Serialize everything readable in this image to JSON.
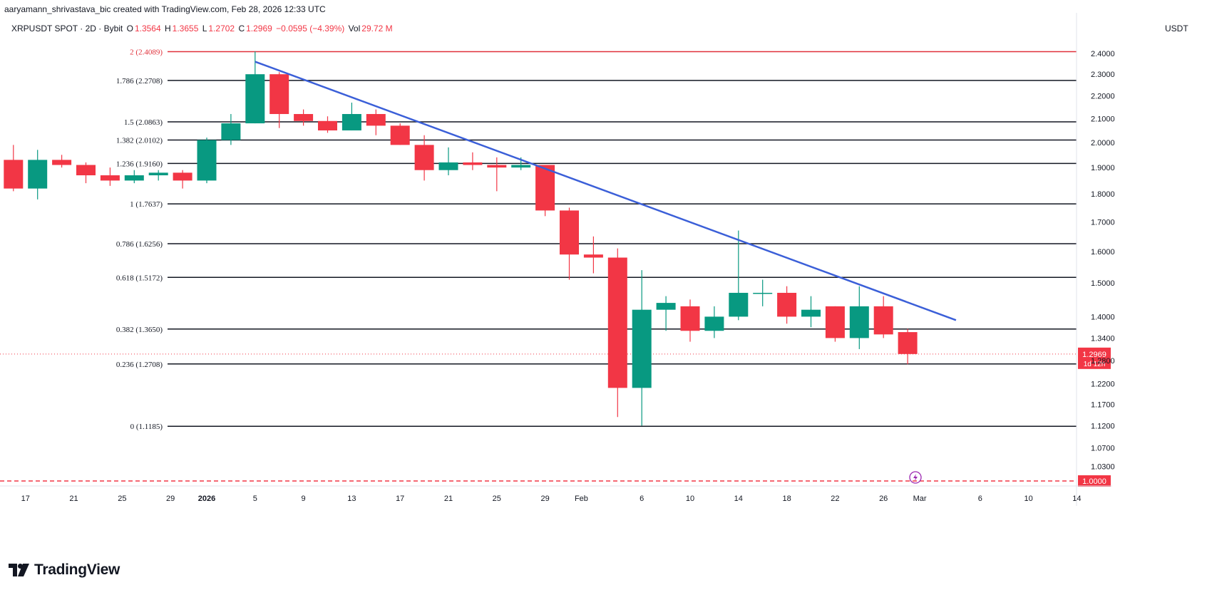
{
  "header": {
    "attribution": "aaryamann_shrivastava_bic created with TradingView.com, Feb 28, 2026 12:33 UTC"
  },
  "symbol_row": {
    "symbol": "XRPUSDT SPOT · 2D · Bybit",
    "o_label": "O",
    "o_value": "1.3564",
    "h_label": "H",
    "h_value": "1.3655",
    "l_label": "L",
    "l_value": "1.2702",
    "c_label": "C",
    "c_value": "1.2969",
    "change": "−0.0595 (−4.39%)",
    "vol_label": "Vol",
    "vol_value": "29.72 M"
  },
  "footer": {
    "logo_text": "TradingView"
  },
  "colors": {
    "up": "#089981",
    "down": "#f23645",
    "trendline": "#3b5fd8",
    "fib": "#131722",
    "top_fib": "#e0303a",
    "grid": "#f0f3fa"
  },
  "chart_data": {
    "type": "candlestick",
    "unit": "USDT",
    "timeframe": "2D",
    "ylim": [
      0.98,
      2.46
    ],
    "y_ticks": [
      "2.4000",
      "2.3000",
      "2.2000",
      "2.1000",
      "2.0000",
      "1.9000",
      "1.8000",
      "1.7000",
      "1.6000",
      "1.5000",
      "1.4000",
      "1.3400",
      "1.2800",
      "1.2200",
      "1.1700",
      "1.1200",
      "1.0700",
      "1.0300"
    ],
    "x_ticks": [
      {
        "label": "17",
        "day": -15
      },
      {
        "label": "21",
        "day": -11
      },
      {
        "label": "25",
        "day": -7
      },
      {
        "label": "29",
        "day": -3
      },
      {
        "label": "2026",
        "day": 0
      },
      {
        "label": "5",
        "day": 4
      },
      {
        "label": "9",
        "day": 8
      },
      {
        "label": "13",
        "day": 12
      },
      {
        "label": "17",
        "day": 16
      },
      {
        "label": "21",
        "day": 20
      },
      {
        "label": "25",
        "day": 24
      },
      {
        "label": "29",
        "day": 28
      },
      {
        "label": "Feb",
        "day": 31
      },
      {
        "label": "6",
        "day": 36
      },
      {
        "label": "10",
        "day": 40
      },
      {
        "label": "14",
        "day": 44
      },
      {
        "label": "18",
        "day": 48
      },
      {
        "label": "22",
        "day": 52
      },
      {
        "label": "26",
        "day": 56
      },
      {
        "label": "Mar",
        "day": 59
      },
      {
        "label": "6",
        "day": 64
      },
      {
        "label": "10",
        "day": 68
      },
      {
        "label": "14",
        "day": 72
      }
    ],
    "candles": [
      {
        "day": -16,
        "o": 1.93,
        "h": 1.99,
        "l": 1.81,
        "c": 1.82
      },
      {
        "day": -14,
        "o": 1.82,
        "h": 1.97,
        "l": 1.78,
        "c": 1.93
      },
      {
        "day": -12,
        "o": 1.93,
        "h": 1.95,
        "l": 1.9,
        "c": 1.91
      },
      {
        "day": -10,
        "o": 1.91,
        "h": 1.92,
        "l": 1.84,
        "c": 1.87
      },
      {
        "day": -8,
        "o": 1.87,
        "h": 1.9,
        "l": 1.83,
        "c": 1.85
      },
      {
        "day": -6,
        "o": 1.85,
        "h": 1.89,
        "l": 1.84,
        "c": 1.87
      },
      {
        "day": -4,
        "o": 1.87,
        "h": 1.89,
        "l": 1.85,
        "c": 1.88
      },
      {
        "day": -2,
        "o": 1.88,
        "h": 1.89,
        "l": 1.82,
        "c": 1.85
      },
      {
        "day": 0,
        "o": 1.85,
        "h": 2.02,
        "l": 1.84,
        "c": 2.01
      },
      {
        "day": 2,
        "o": 2.01,
        "h": 2.12,
        "l": 1.99,
        "c": 2.08
      },
      {
        "day": 4,
        "o": 2.08,
        "h": 2.41,
        "l": 2.08,
        "c": 2.3
      },
      {
        "day": 6,
        "o": 2.3,
        "h": 2.31,
        "l": 2.06,
        "c": 2.12
      },
      {
        "day": 8,
        "o": 2.12,
        "h": 2.14,
        "l": 2.07,
        "c": 2.09
      },
      {
        "day": 10,
        "o": 2.09,
        "h": 2.11,
        "l": 2.04,
        "c": 2.05
      },
      {
        "day": 12,
        "o": 2.05,
        "h": 2.17,
        "l": 2.05,
        "c": 2.12
      },
      {
        "day": 14,
        "o": 2.12,
        "h": 2.14,
        "l": 2.03,
        "c": 2.07
      },
      {
        "day": 16,
        "o": 2.07,
        "h": 2.08,
        "l": 1.99,
        "c": 1.99
      },
      {
        "day": 18,
        "o": 1.99,
        "h": 2.03,
        "l": 1.85,
        "c": 1.89
      },
      {
        "day": 20,
        "o": 1.89,
        "h": 1.98,
        "l": 1.87,
        "c": 1.92
      },
      {
        "day": 22,
        "o": 1.92,
        "h": 1.96,
        "l": 1.89,
        "c": 1.91
      },
      {
        "day": 24,
        "o": 1.91,
        "h": 1.94,
        "l": 1.81,
        "c": 1.9
      },
      {
        "day": 26,
        "o": 1.9,
        "h": 1.94,
        "l": 1.89,
        "c": 1.91
      },
      {
        "day": 28,
        "o": 1.91,
        "h": 1.91,
        "l": 1.72,
        "c": 1.74
      },
      {
        "day": 30,
        "o": 1.74,
        "h": 1.75,
        "l": 1.51,
        "c": 1.59
      },
      {
        "day": 32,
        "o": 1.59,
        "h": 1.65,
        "l": 1.53,
        "c": 1.58
      },
      {
        "day": 34,
        "o": 1.58,
        "h": 1.61,
        "l": 1.14,
        "c": 1.21
      },
      {
        "day": 36,
        "o": 1.21,
        "h": 1.54,
        "l": 1.12,
        "c": 1.42
      },
      {
        "day": 38,
        "o": 1.42,
        "h": 1.46,
        "l": 1.36,
        "c": 1.44
      },
      {
        "day": 40,
        "o": 1.43,
        "h": 1.45,
        "l": 1.33,
        "c": 1.36
      },
      {
        "day": 42,
        "o": 1.36,
        "h": 1.43,
        "l": 1.34,
        "c": 1.4
      },
      {
        "day": 44,
        "o": 1.4,
        "h": 1.67,
        "l": 1.39,
        "c": 1.47
      },
      {
        "day": 46,
        "o": 1.47,
        "h": 1.51,
        "l": 1.43,
        "c": 1.47
      },
      {
        "day": 48,
        "o": 1.47,
        "h": 1.49,
        "l": 1.38,
        "c": 1.4
      },
      {
        "day": 50,
        "o": 1.4,
        "h": 1.46,
        "l": 1.37,
        "c": 1.42
      },
      {
        "day": 52,
        "o": 1.43,
        "h": 1.43,
        "l": 1.33,
        "c": 1.34
      },
      {
        "day": 54,
        "o": 1.34,
        "h": 1.49,
        "l": 1.31,
        "c": 1.43
      },
      {
        "day": 56,
        "o": 1.43,
        "h": 1.46,
        "l": 1.34,
        "c": 1.35
      },
      {
        "day": 58,
        "o": 1.3564,
        "h": 1.3655,
        "l": 1.2702,
        "c": 1.2969
      }
    ],
    "fib_levels": [
      {
        "label": "2 (2.4089)",
        "value": 2.4089
      },
      {
        "label": "1.786 (2.2708)",
        "value": 2.2708
      },
      {
        "label": "1.5 (2.0863)",
        "value": 2.0863
      },
      {
        "label": "1.382 (2.0102)",
        "value": 2.0102
      },
      {
        "label": "1.236 (1.9160)",
        "value": 1.916
      },
      {
        "label": "1 (1.7637)",
        "value": 1.7637
      },
      {
        "label": "0.786 (1.6256)",
        "value": 1.6256
      },
      {
        "label": "0.618 (1.5172)",
        "value": 1.5172
      },
      {
        "label": "0.382 (1.3650)",
        "value": 1.365
      },
      {
        "label": "0.236 (1.2708)",
        "value": 1.2708
      },
      {
        "label": "0 (1.1185)",
        "value": 1.1185
      }
    ],
    "trendline": {
      "start": {
        "day": 4,
        "value": 2.36
      },
      "end": {
        "day": 62,
        "value": 1.39
      }
    },
    "support_level": {
      "value": 1.0,
      "label": "1.0000"
    },
    "last_price": {
      "value": 1.2969,
      "label": "1.2969",
      "countdown": "1d 12h"
    }
  }
}
